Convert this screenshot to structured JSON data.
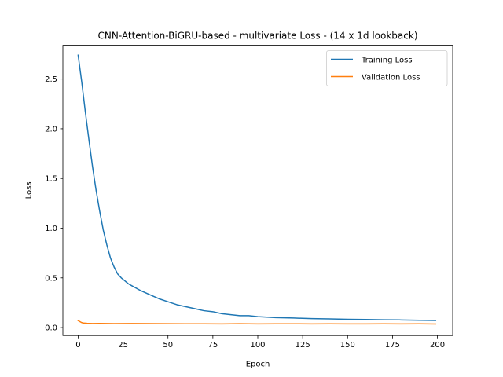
{
  "chart_data": {
    "type": "line",
    "title": "CNN-Attention-BiGRU-based - multivariate Loss - (14 x 1d lookback)",
    "xlabel": "Epoch",
    "ylabel": "Loss",
    "xlim": [
      -8.5,
      208.5
    ],
    "ylim": [
      -0.08,
      2.84
    ],
    "xticks": [
      0,
      25,
      50,
      75,
      100,
      125,
      150,
      175,
      200
    ],
    "xtick_labels": [
      "0",
      "25",
      "50",
      "75",
      "100",
      "125",
      "150",
      "175",
      "200"
    ],
    "yticks": [
      0.0,
      0.5,
      1.0,
      1.5,
      2.0,
      2.5
    ],
    "ytick_labels": [
      "0.0",
      "0.5",
      "1.0",
      "1.5",
      "2.0",
      "2.5"
    ],
    "grid": false,
    "legend_position": "upper right",
    "series": [
      {
        "name": "Training Loss",
        "color": "#1f77b4",
        "x": [
          0,
          2,
          4,
          6,
          8,
          10,
          12,
          14,
          16,
          18,
          20,
          22,
          24,
          26,
          28,
          30,
          35,
          40,
          45,
          50,
          55,
          60,
          65,
          70,
          75,
          80,
          85,
          90,
          95,
          100,
          110,
          120,
          130,
          140,
          150,
          160,
          170,
          180,
          190,
          199
        ],
        "values": [
          2.74,
          2.47,
          2.17,
          1.89,
          1.62,
          1.38,
          1.17,
          0.98,
          0.83,
          0.7,
          0.61,
          0.54,
          0.5,
          0.47,
          0.44,
          0.42,
          0.37,
          0.33,
          0.29,
          0.26,
          0.23,
          0.21,
          0.19,
          0.17,
          0.16,
          0.14,
          0.13,
          0.12,
          0.12,
          0.11,
          0.1,
          0.096,
          0.09,
          0.087,
          0.084,
          0.082,
          0.079,
          0.077,
          0.074,
          0.072
        ]
      },
      {
        "name": "Validation Loss",
        "color": "#ff7f0e",
        "x": [
          0,
          1,
          2,
          3,
          5,
          8,
          12,
          20,
          30,
          40,
          50,
          60,
          70,
          80,
          90,
          100,
          110,
          120,
          130,
          140,
          150,
          160,
          170,
          180,
          190,
          199
        ],
        "values": [
          0.07,
          0.06,
          0.05,
          0.046,
          0.043,
          0.041,
          0.042,
          0.04,
          0.041,
          0.04,
          0.039,
          0.038,
          0.038,
          0.037,
          0.039,
          0.037,
          0.038,
          0.038,
          0.037,
          0.038,
          0.037,
          0.037,
          0.038,
          0.037,
          0.038,
          0.036
        ]
      }
    ]
  }
}
